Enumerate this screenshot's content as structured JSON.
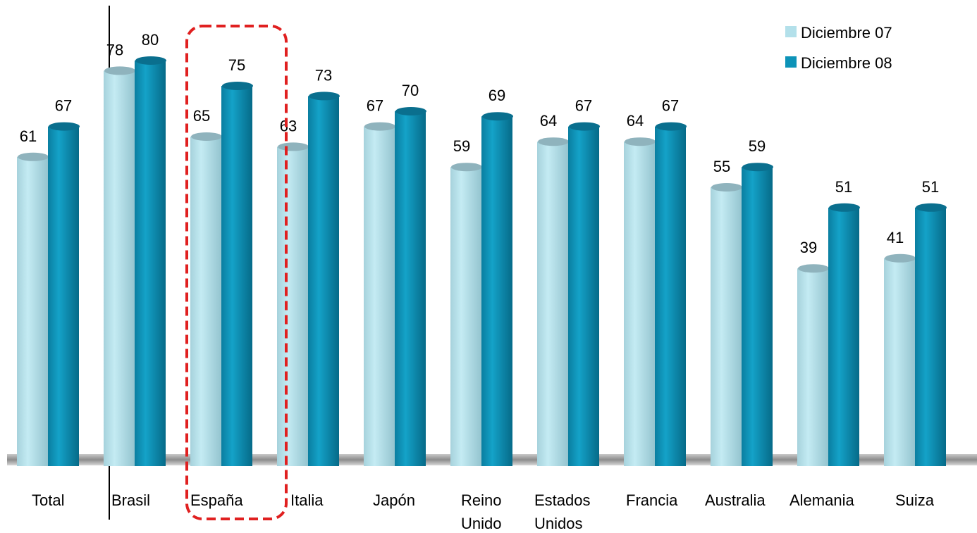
{
  "chart_data": {
    "type": "bar",
    "title": "",
    "xlabel": "",
    "ylabel": "",
    "ylim": [
      0,
      80
    ],
    "grid": false,
    "legend_position": "top-right",
    "categories": [
      [
        "Total"
      ],
      [
        "Brasil"
      ],
      [
        "España"
      ],
      [
        "Italia"
      ],
      [
        "Japón"
      ],
      [
        "Reino",
        "Unido"
      ],
      [
        "Estados",
        "Unidos"
      ],
      [
        "Francia"
      ],
      [
        "Australia"
      ],
      [
        "Alemania"
      ],
      [
        "Suiza"
      ]
    ],
    "series": [
      {
        "name": "Diciembre 07",
        "color": "#b3e0ea",
        "values": [
          61,
          78,
          65,
          63,
          67,
          59,
          64,
          64,
          55,
          39,
          41
        ]
      },
      {
        "name": "Diciembre 08",
        "color": "#0d93b8",
        "values": [
          67,
          80,
          75,
          73,
          70,
          69,
          67,
          67,
          59,
          51,
          51
        ]
      }
    ],
    "highlight_category": "España",
    "highlight_color": "#e02020"
  }
}
